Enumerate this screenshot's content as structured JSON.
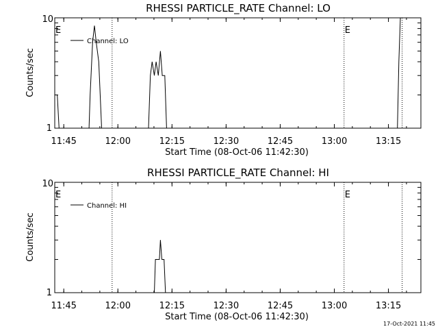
{
  "footer_timestamp": "17-Oct-2021 11:45",
  "chart_data": [
    {
      "type": "line",
      "title": "RHESSI PARTICLE_RATE Channel: LO",
      "xlabel": "Start Time (08-Oct-06 11:42:30)",
      "ylabel": "Counts/sec",
      "yscale": "log",
      "ylim": [
        1,
        10
      ],
      "yticks": [
        "1",
        "10"
      ],
      "xlim_minutes": [
        0,
        101.5
      ],
      "xticks": [
        {
          "label": "11:45",
          "minute": 2.5
        },
        {
          "label": "12:00",
          "minute": 17.5
        },
        {
          "label": "12:15",
          "minute": 32.5
        },
        {
          "label": "12:30",
          "minute": 47.5
        },
        {
          "label": "12:45",
          "minute": 62.5
        },
        {
          "label": "13:00",
          "minute": 77.5
        },
        {
          "label": "13:15",
          "minute": 92.5
        }
      ],
      "vlines": [
        {
          "minute": 15.9,
          "label": ""
        },
        {
          "minute": 80.2,
          "label": "E"
        },
        {
          "minute": 96.3,
          "label": ""
        }
      ],
      "corner_label": "E",
      "legend": {
        "label": "Channel: LO",
        "position": "top-left"
      },
      "series": [
        {
          "name": "Channel: LO",
          "points": [
            [
              0,
              2.0
            ],
            [
              0.7,
              2.0
            ],
            [
              1.2,
              1.0
            ],
            [
              9.5,
              1.0
            ],
            [
              9.8,
              2.0
            ],
            [
              10.5,
              6.0
            ],
            [
              11.0,
              8.5
            ],
            [
              11.5,
              6.0
            ],
            [
              12.2,
              4.0
            ],
            [
              13.0,
              1.0
            ],
            [
              26.0,
              1.0
            ],
            [
              26.5,
              3.0
            ],
            [
              27.0,
              4.0
            ],
            [
              27.6,
              3.0
            ],
            [
              28.1,
              4.0
            ],
            [
              28.7,
              3.0
            ],
            [
              29.3,
              5.0
            ],
            [
              29.8,
              3.0
            ],
            [
              30.5,
              3.0
            ],
            [
              31.0,
              1.0
            ],
            [
              95.0,
              1.0
            ],
            [
              95.4,
              4.0
            ],
            [
              95.8,
              10.0
            ],
            [
              96.0,
              10.0
            ]
          ]
        }
      ]
    },
    {
      "type": "line",
      "title": "RHESSI PARTICLE_RATE Channel: HI",
      "xlabel": "Start Time (08-Oct-06 11:42:30)",
      "ylabel": "Counts/sec",
      "yscale": "log",
      "ylim": [
        1,
        10
      ],
      "yticks": [
        "1",
        "10"
      ],
      "xlim_minutes": [
        0,
        101.5
      ],
      "xticks": [
        {
          "label": "11:45",
          "minute": 2.5
        },
        {
          "label": "12:00",
          "minute": 17.5
        },
        {
          "label": "12:15",
          "minute": 32.5
        },
        {
          "label": "12:30",
          "minute": 47.5
        },
        {
          "label": "12:45",
          "minute": 62.5
        },
        {
          "label": "13:00",
          "minute": 77.5
        },
        {
          "label": "13:15",
          "minute": 92.5
        }
      ],
      "vlines": [
        {
          "minute": 15.9,
          "label": ""
        },
        {
          "minute": 80.2,
          "label": "E"
        },
        {
          "minute": 96.3,
          "label": ""
        }
      ],
      "corner_label": "E",
      "legend": {
        "label": "Channel: HI",
        "position": "top-left"
      },
      "series": [
        {
          "name": "Channel: HI",
          "points": [
            [
              0,
              1.0
            ],
            [
              27.6,
              1.0
            ],
            [
              27.9,
              2.0
            ],
            [
              29.0,
              2.0
            ],
            [
              29.3,
              3.0
            ],
            [
              29.7,
              2.0
            ],
            [
              30.3,
              2.0
            ],
            [
              30.7,
              1.0
            ],
            [
              101.5,
              1.0
            ]
          ]
        }
      ]
    }
  ]
}
